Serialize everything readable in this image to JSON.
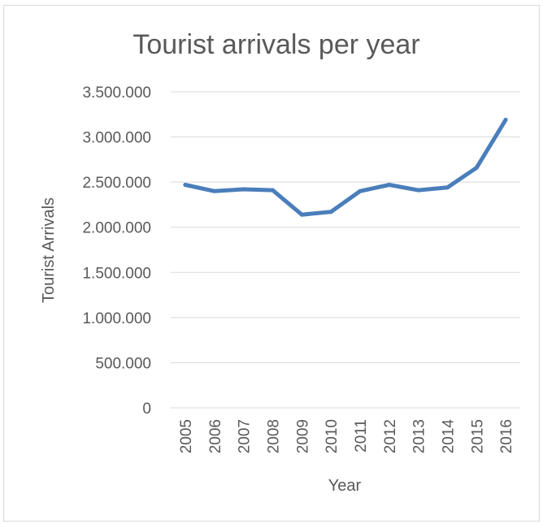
{
  "chart_data": {
    "type": "line",
    "title": "Tourist arrivals per year",
    "xlabel": "Year",
    "ylabel": "Tourist Arrivals",
    "x": [
      "2005",
      "2006",
      "2007",
      "2008",
      "2009",
      "2010",
      "2011",
      "2012",
      "2013",
      "2014",
      "2015",
      "2016"
    ],
    "series": [
      {
        "values": [
          2470000,
          2400000,
          2420000,
          2410000,
          2140000,
          2170000,
          2400000,
          2470000,
          2410000,
          2440000,
          2660000,
          3190000
        ],
        "color": "#4a7ebb"
      }
    ],
    "y_ticks": [
      "0",
      "500.000",
      "1.000.000",
      "1.500.000",
      "2.000.000",
      "2.500.000",
      "3.000.000",
      "3.500.000"
    ],
    "ylim": [
      0,
      3500000
    ],
    "grid": true,
    "legend": "none"
  }
}
